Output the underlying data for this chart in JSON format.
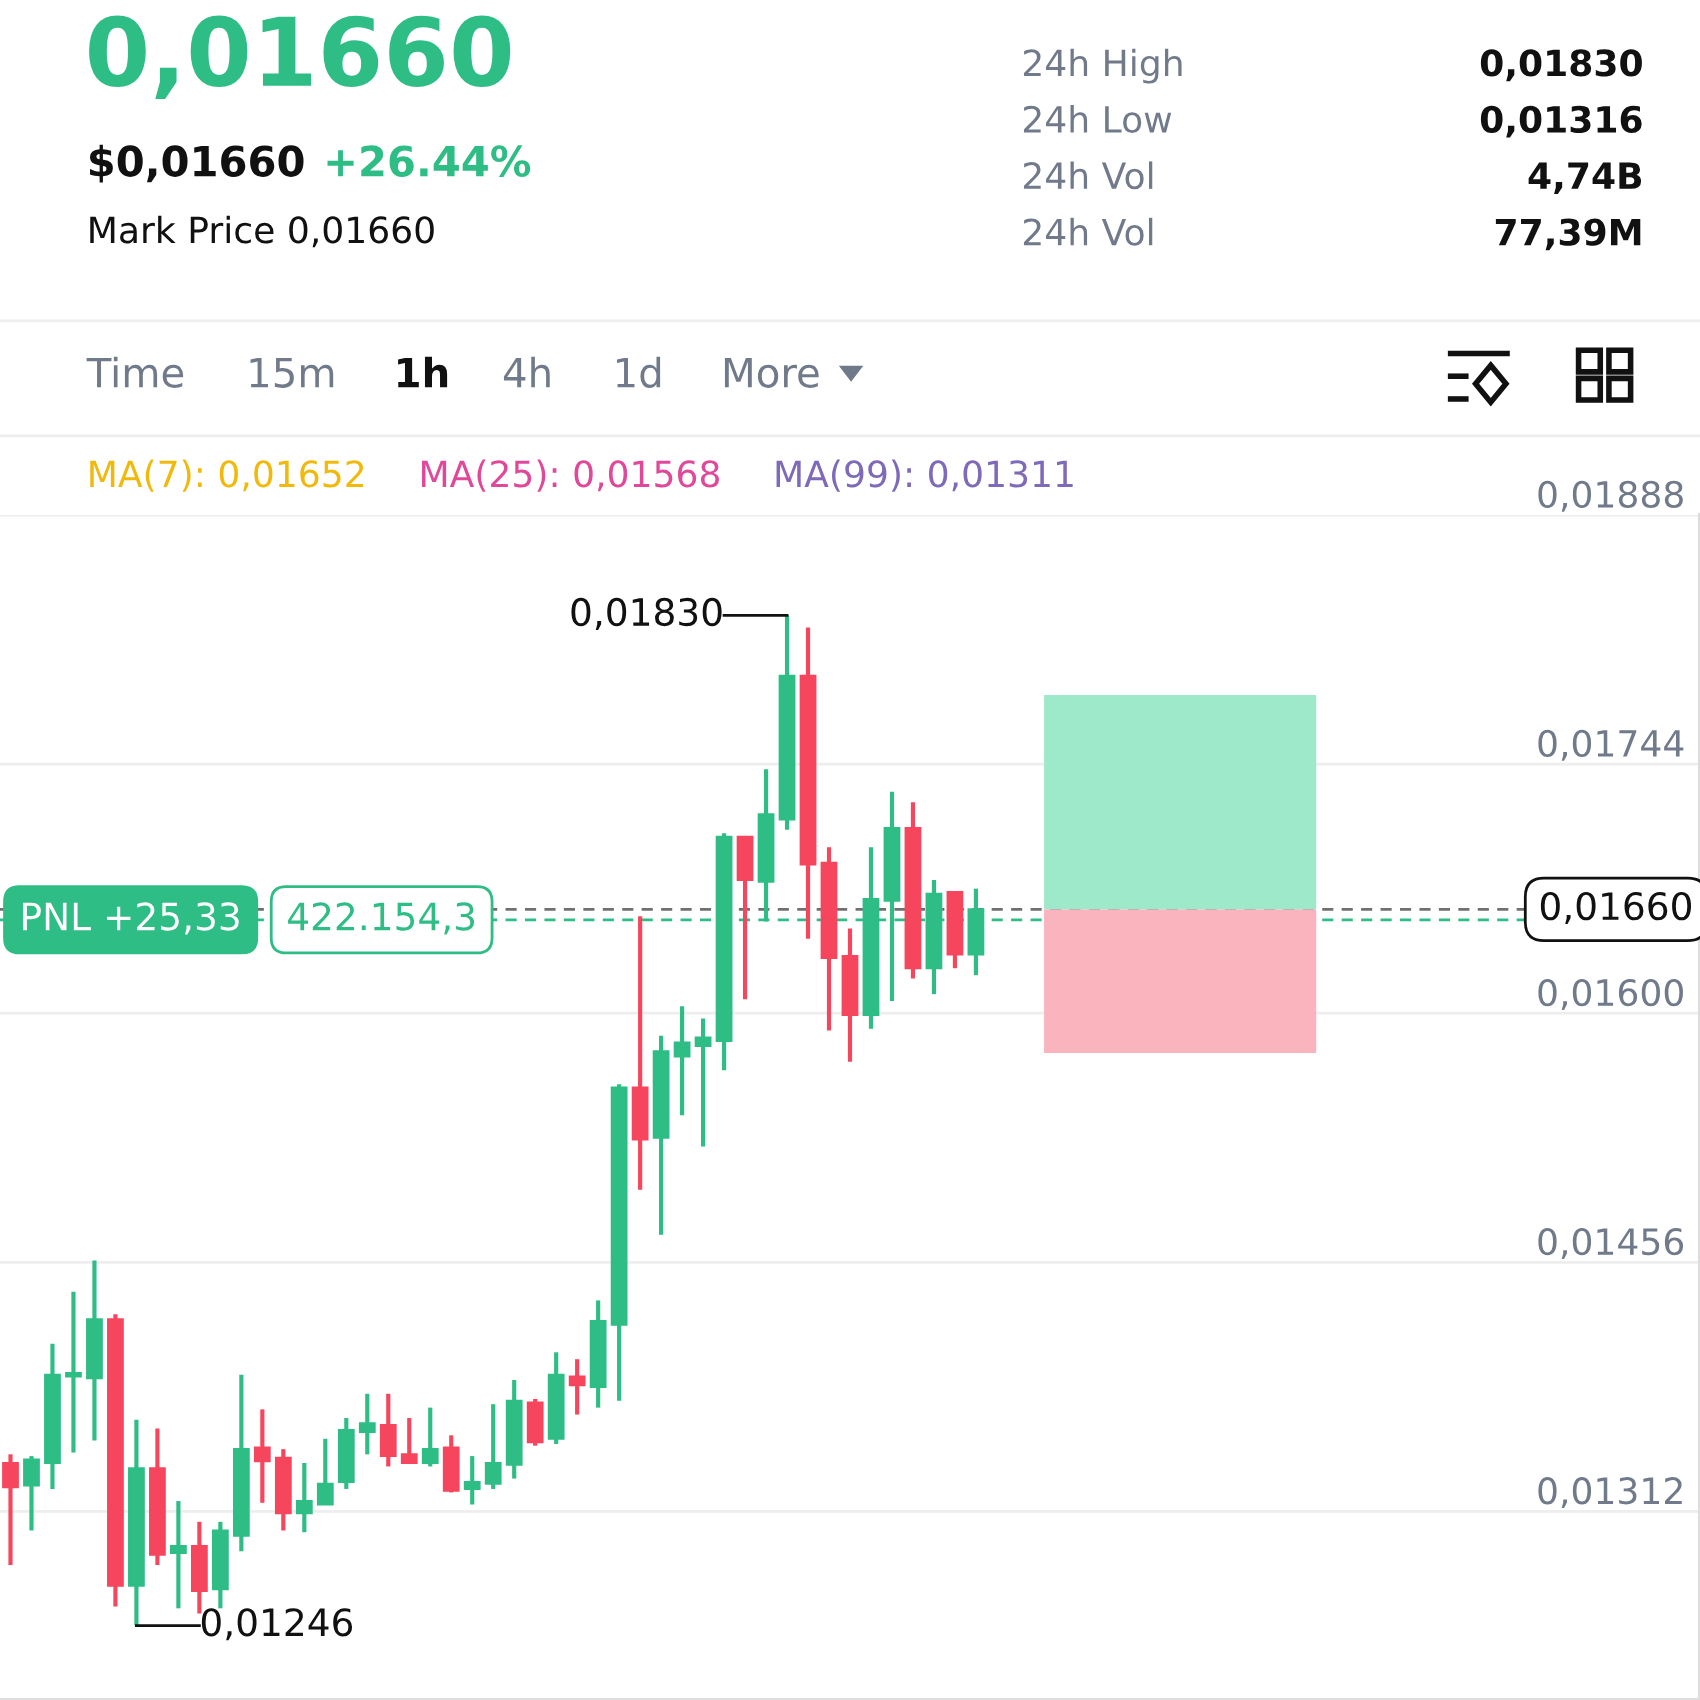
{
  "chart_data": {
    "type": "candlestick",
    "title": "0,01660",
    "categories": [
      null,
      null,
      null,
      null,
      null,
      null,
      null,
      null,
      null,
      null,
      null,
      null,
      null,
      null,
      null,
      null,
      null,
      null,
      null,
      null,
      null,
      null,
      null,
      null,
      null,
      null,
      null,
      null,
      null,
      null,
      null,
      null,
      null,
      null,
      null,
      null,
      null,
      null,
      null,
      null,
      null,
      null,
      null,
      null,
      null,
      null,
      null,
      null,
      null,
      null,
      null,
      null,
      null,
      null,
      null,
      null,
      null,
      null,
      null,
      null,
      null,
      null,
      null,
      null,
      null,
      null,
      null,
      null,
      null,
      null,
      null,
      null,
      null,
      null,
      null,
      null,
      null,
      null,
      null,
      null,
      null
    ],
    "ohlc": [
      [
        0.0134,
        0.01345,
        0.01281,
        0.01326
      ],
      [
        0.01327,
        0.01344,
        0.01301,
        0.01342
      ],
      [
        0.0134,
        0.01409,
        0.01325,
        0.01391
      ],
      [
        0.0139,
        0.01439,
        0.01346,
        0.01392
      ],
      [
        0.01389,
        0.01457,
        0.01353,
        0.01423
      ],
      [
        0.01423,
        0.01426,
        0.01257,
        0.01269
      ],
      [
        0.01269,
        0.01365,
        0.01246,
        0.01337
      ],
      [
        0.01337,
        0.0136,
        0.01281,
        0.01287
      ],
      [
        0.01288,
        0.01318,
        0.01256,
        0.01292
      ],
      [
        0.01292,
        0.01306,
        0.01253,
        0.01266
      ],
      [
        0.01267,
        0.01306,
        0.01256,
        0.01301
      ],
      [
        0.01298,
        0.01391,
        0.01289,
        0.01348
      ],
      [
        0.01349,
        0.01371,
        0.01317,
        0.01341
      ],
      [
        0.01343,
        0.01348,
        0.01301,
        0.01311
      ],
      [
        0.01311,
        0.0134,
        0.013,
        0.01318
      ],
      [
        0.01316,
        0.01354,
        0.01316,
        0.01328
      ],
      [
        0.01329,
        0.01366,
        0.01325,
        0.01359
      ],
      [
        0.01358,
        0.0138,
        0.01345,
        0.01363
      ],
      [
        0.01362,
        0.0138,
        0.01338,
        0.01344
      ],
      [
        0.01345,
        0.01366,
        0.0134,
        0.0134
      ],
      [
        0.0134,
        0.01372,
        0.01338,
        0.01348
      ],
      [
        0.01349,
        0.01356,
        0.01323,
        0.01324
      ],
      [
        0.01325,
        0.01344,
        0.01316,
        0.01329
      ],
      [
        0.01328,
        0.01374,
        0.01325,
        0.0134
      ],
      [
        0.01339,
        0.01388,
        0.01331,
        0.01376
      ],
      [
        0.01375,
        0.01377,
        0.0135,
        0.01352
      ],
      [
        0.01354,
        0.01404,
        0.01351,
        0.01391
      ],
      [
        0.0139,
        0.014,
        0.01368,
        0.01385
      ],
      [
        0.01384,
        0.01434,
        0.01372,
        0.01422
      ],
      [
        0.0142,
        0.01559,
        0.01376,
        0.01557
      ],
      [
        0.01557,
        0.01656,
        0.01498,
        0.01527
      ],
      [
        0.01528,
        0.01587,
        0.01472,
        0.01578
      ],
      [
        0.01575,
        0.01604,
        0.01541,
        0.01583
      ],
      [
        0.01581,
        0.01597,
        0.01523,
        0.01586
      ],
      [
        0.01584,
        0.01704,
        0.01567,
        0.01702
      ],
      [
        0.01702,
        0.01702,
        0.01608,
        0.01677
      ],
      [
        0.01676,
        0.01741,
        0.01653,
        0.01715
      ],
      [
        0.01712,
        0.0183,
        0.01706,
        0.01795
      ],
      [
        0.01795,
        0.01823,
        0.01643,
        0.01686
      ],
      [
        0.01687,
        0.01696,
        0.0159,
        0.01632
      ],
      [
        0.01633,
        0.01649,
        0.01572,
        0.01599
      ],
      [
        0.01599,
        0.01696,
        0.01591,
        0.01666
      ],
      [
        0.01665,
        0.01728,
        0.01607,
        0.01707
      ],
      [
        0.01707,
        0.01722,
        0.0162,
        0.01626
      ],
      [
        0.01626,
        0.01677,
        0.01611,
        0.01669
      ],
      [
        0.0167,
        0.0167,
        0.01626,
        0.01634
      ],
      [
        0.01634,
        0.01672,
        0.01622,
        0.0166
      ],
      null,
      null,
      null,
      null,
      null,
      null,
      null,
      null,
      null,
      null,
      null,
      null,
      null,
      null,
      null,
      null,
      null,
      null,
      null,
      null,
      null,
      null,
      null,
      null,
      null,
      null,
      null,
      null,
      null,
      null,
      null,
      null,
      null,
      null
    ],
    "colors": [
      "#f6465d",
      "#2ebd85",
      "#2ebd85",
      "#2ebd85",
      "#2ebd85",
      "#f6465d",
      "#2ebd85",
      "#f6465d",
      "#2ebd85",
      "#f6465d",
      "#2ebd85",
      "#2ebd85",
      "#f6465d",
      "#f6465d",
      "#2ebd85",
      "#2ebd85",
      "#2ebd85",
      "#2ebd85",
      "#f6465d",
      "#f6465d",
      "#2ebd85",
      "#f6465d",
      "#2ebd85",
      "#2ebd85",
      "#2ebd85",
      "#f6465d",
      "#2ebd85",
      "#f6465d",
      "#2ebd85",
      "#2ebd85",
      "#f6465d",
      "#2ebd85",
      "#2ebd85",
      "#2ebd85",
      "#2ebd85",
      "#f6465d",
      "#2ebd85",
      "#2ebd85",
      "#f6465d",
      "#f6465d",
      "#f6465d",
      "#2ebd85",
      "#2ebd85",
      "#f6465d",
      "#2ebd85",
      "#f6465d",
      "#2ebd85",
      null,
      null,
      null,
      null,
      null,
      null,
      null,
      null,
      null,
      null,
      null,
      null,
      null,
      null,
      null,
      null,
      null,
      null,
      null,
      null,
      null,
      null,
      null,
      null,
      null,
      null,
      null,
      null,
      null,
      null,
      null,
      null,
      null,
      null
    ],
    "ylim": [
      0.01203,
      0.01888
    ],
    "yticks": [
      {
        "value": 0.01312,
        "label": "0,01312"
      },
      {
        "value": 0.01456,
        "label": "0,01456"
      },
      {
        "value": 0.016,
        "label": "0,01600"
      },
      {
        "value": 0.01744,
        "label": "0,01744"
      },
      {
        "value": 0.01888,
        "label": "0,01888"
      }
    ],
    "tick_labels": "y",
    "grid": "y",
    "ref_lines": [
      {
        "axis": "y",
        "value": 0.0166,
        "label": "0,01660",
        "color": "#707070",
        "line_style": "dashed"
      },
      {
        "axis": "y",
        "value": 0.01654,
        "label": "PNL +25,33",
        "color": "#2ebd85",
        "line_style": "dashed"
      }
    ],
    "bands": [
      {
        "axis": "y",
        "from": 0.0166,
        "to": 0.01784,
        "color": "#9fe9cb"
      },
      {
        "axis": "y",
        "from": 0.01577,
        "to": 0.0166,
        "color": "#f9b4be"
      }
    ],
    "annotations": [
      "$0,01660",
      "+26.44%",
      "Mark Price 0,01660",
      "24h High",
      "0,01830",
      "24h Low",
      "0,01316",
      "24h Vol",
      "4,74B",
      "24h Vol",
      "77,39M",
      "Time",
      "15m",
      "1h",
      "4h",
      "1d",
      "More",
      "MA(7): 0,01652",
      "MA(25): 0,01568",
      "MA(99): 0,01311",
      "422.154,3",
      "0,01830",
      "0,01246"
    ]
  }
}
